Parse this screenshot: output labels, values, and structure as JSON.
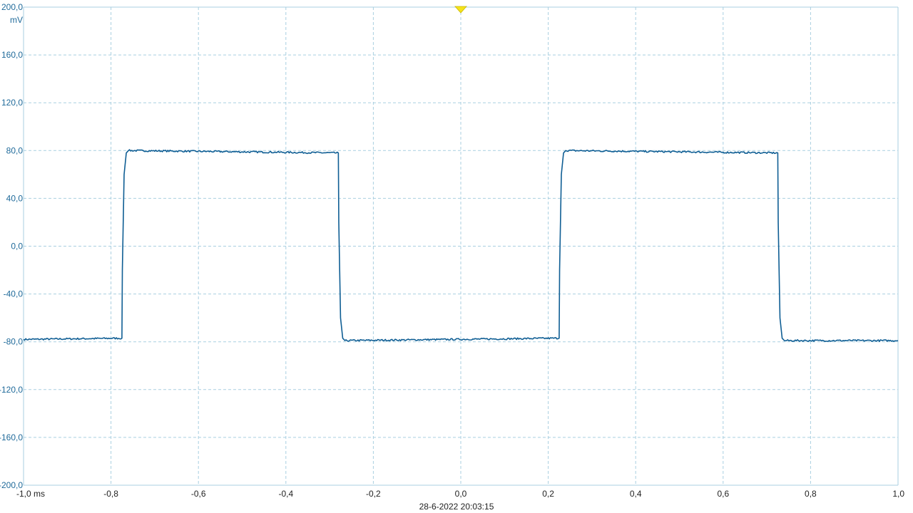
{
  "chart_data": {
    "type": "line",
    "title": "",
    "timestamp": "28-6-2022 20:03:15",
    "xlabel": "",
    "ylabel": "",
    "y_unit": "mV",
    "x_unit_label": "-1,0 ms",
    "xlim": [
      -1.0,
      1.0
    ],
    "ylim": [
      -200,
      200
    ],
    "grid": true,
    "x_ticks": [
      -1.0,
      -0.8,
      -0.6,
      -0.4,
      -0.2,
      0.0,
      0.2,
      0.4,
      0.6,
      0.8,
      1.0
    ],
    "x_tick_labels": [
      "-1,0 ms",
      "-0,8",
      "-0,6",
      "-0,4",
      "-0,2",
      "0,0",
      "0,2",
      "0,4",
      "0,6",
      "0,8",
      "1,0"
    ],
    "y_ticks": [
      200,
      160,
      120,
      80,
      40,
      0,
      -40,
      -80,
      -120,
      -160,
      -200
    ],
    "y_tick_labels": [
      "200,0",
      "160,0",
      "120,0",
      "80,0",
      "40,0",
      "0,0",
      "-40,0",
      "-80,0",
      "-120,0",
      "-160,0",
      "-200,0"
    ],
    "trigger_marker": {
      "x": 0.0,
      "color": "#f5e31a"
    },
    "series": [
      {
        "color": "#0f5e94",
        "x": [
          -1.0,
          -0.775,
          -0.774,
          -0.77,
          -0.765,
          -0.76,
          -0.28,
          -0.279,
          -0.275,
          -0.27,
          -0.265,
          0.225,
          0.226,
          0.23,
          0.235,
          0.24,
          0.725,
          0.726,
          0.73,
          0.735,
          0.74,
          1.0
        ],
        "y": [
          -78,
          -77,
          -20,
          60,
          78,
          80,
          78,
          20,
          -60,
          -77,
          -79,
          -77,
          -20,
          60,
          78,
          80,
          78,
          20,
          -60,
          -77,
          -79,
          -79
        ]
      }
    ]
  }
}
